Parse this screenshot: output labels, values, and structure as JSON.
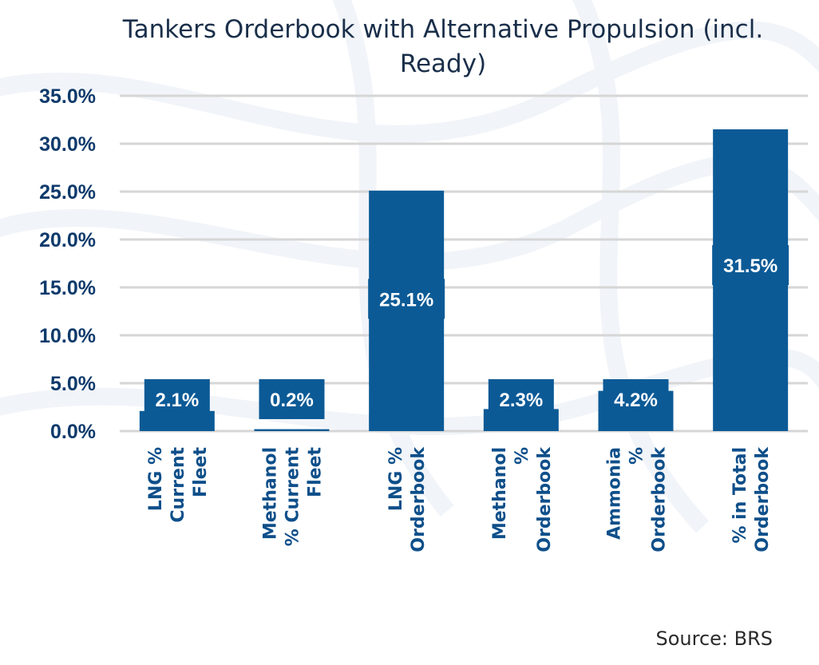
{
  "colors": {
    "bar": "#0b5a96",
    "grid": "#d6d6d6",
    "label_box": "#0b5a96"
  },
  "source": "Source: BRS",
  "chart_data": {
    "type": "bar",
    "title_lines": [
      "Tankers Orderbook with Alternative Propulsion (incl.",
      "Ready)"
    ],
    "categories": [
      [
        "LNG %",
        "Current",
        "Fleet"
      ],
      [
        "Methanol",
        "% Current",
        "Fleet"
      ],
      [
        "LNG %",
        "Orderbook"
      ],
      [
        "Methanol",
        "%",
        "Orderbook"
      ],
      [
        "Ammonia",
        "%",
        "Orderbook"
      ],
      [
        "% in Total",
        "Orderbook"
      ]
    ],
    "values": [
      2.1,
      0.2,
      25.1,
      2.3,
      4.2,
      31.5
    ],
    "data_labels": [
      "2.1%",
      "0.2%",
      "25.1%",
      "2.3%",
      "4.2%",
      "31.5%"
    ],
    "ylim": [
      0,
      35
    ],
    "y_ticks": [
      0,
      5,
      10,
      15,
      20,
      25,
      30,
      35
    ],
    "y_tick_labels": [
      "0.0%",
      "5.0%",
      "10.0%",
      "15.0%",
      "20.0%",
      "25.0%",
      "30.0%",
      "35.0%"
    ],
    "grid": true,
    "legend": "none"
  }
}
